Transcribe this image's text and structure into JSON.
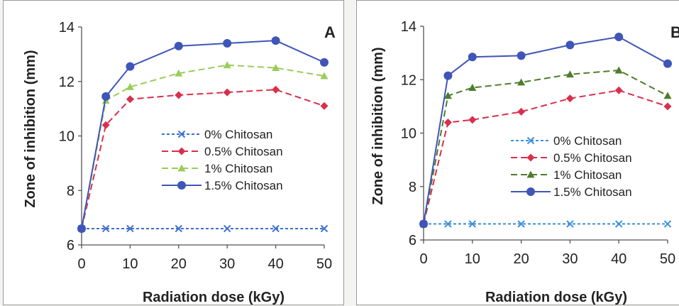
{
  "chart_data": [
    {
      "type": "line",
      "panel_label": "A",
      "xlabel": "Radiation dose (kGy)",
      "ylabel": "Zone of inhibition (mm)",
      "x": [
        0,
        5,
        10,
        20,
        30,
        40,
        50
      ],
      "x_ticks": [
        0,
        10,
        20,
        30,
        40,
        50
      ],
      "y_ticks": [
        6,
        8,
        10,
        12,
        14
      ],
      "xlim": [
        0,
        50
      ],
      "ylim": [
        6,
        14
      ],
      "grid": false,
      "legend_position": "center-right",
      "series": [
        {
          "name": "0% Chitosan",
          "values": [
            6.6,
            6.6,
            6.6,
            6.6,
            6.6,
            6.6,
            6.6
          ],
          "color": "#3d6fcf",
          "marker": "x",
          "dash": "dotted"
        },
        {
          "name": "0.5% Chitosan",
          "values": [
            6.6,
            10.4,
            11.35,
            11.5,
            11.6,
            11.7,
            11.1
          ],
          "color": "#d8304c",
          "marker": "diamond",
          "dash": "dashed"
        },
        {
          "name": "1% Chitosan",
          "values": [
            6.6,
            11.3,
            11.8,
            12.3,
            12.6,
            12.5,
            12.2
          ],
          "color": "#9acd5a",
          "marker": "triangle",
          "dash": "dashed"
        },
        {
          "name": "1.5% Chitosan",
          "values": [
            6.6,
            11.45,
            12.55,
            13.3,
            13.4,
            13.5,
            12.7
          ],
          "color": "#3f55b8",
          "marker": "circle",
          "dash": "solid"
        }
      ]
    },
    {
      "type": "line",
      "panel_label": "B",
      "xlabel": "Radiation dose (kGy)",
      "ylabel": "Zone of inhibition (mm)",
      "x": [
        0,
        5,
        10,
        20,
        30,
        40,
        50
      ],
      "x_ticks": [
        0,
        10,
        20,
        30,
        40,
        50
      ],
      "y_ticks": [
        6,
        8,
        10,
        12,
        14
      ],
      "xlim": [
        0,
        50
      ],
      "ylim": [
        6,
        14
      ],
      "grid": false,
      "legend_position": "center-right",
      "series": [
        {
          "name": "0% Chitosan",
          "values": [
            6.6,
            6.6,
            6.6,
            6.6,
            6.6,
            6.6,
            6.6
          ],
          "color": "#3d8fdb",
          "marker": "x",
          "dash": "dotted"
        },
        {
          "name": "0.5% Chitosan",
          "values": [
            6.6,
            10.4,
            10.5,
            10.8,
            11.3,
            11.6,
            11.0
          ],
          "color": "#d8304c",
          "marker": "diamond",
          "dash": "dashed"
        },
        {
          "name": "1% Chitosan",
          "values": [
            6.6,
            11.4,
            11.7,
            11.9,
            12.2,
            12.35,
            11.4
          ],
          "color": "#4e7c2c",
          "marker": "triangle",
          "dash": "dashed"
        },
        {
          "name": "1.5% Chitosan",
          "values": [
            6.6,
            12.15,
            12.85,
            12.9,
            13.3,
            13.6,
            12.6
          ],
          "color": "#3f55b8",
          "marker": "circle",
          "dash": "solid"
        }
      ]
    }
  ]
}
